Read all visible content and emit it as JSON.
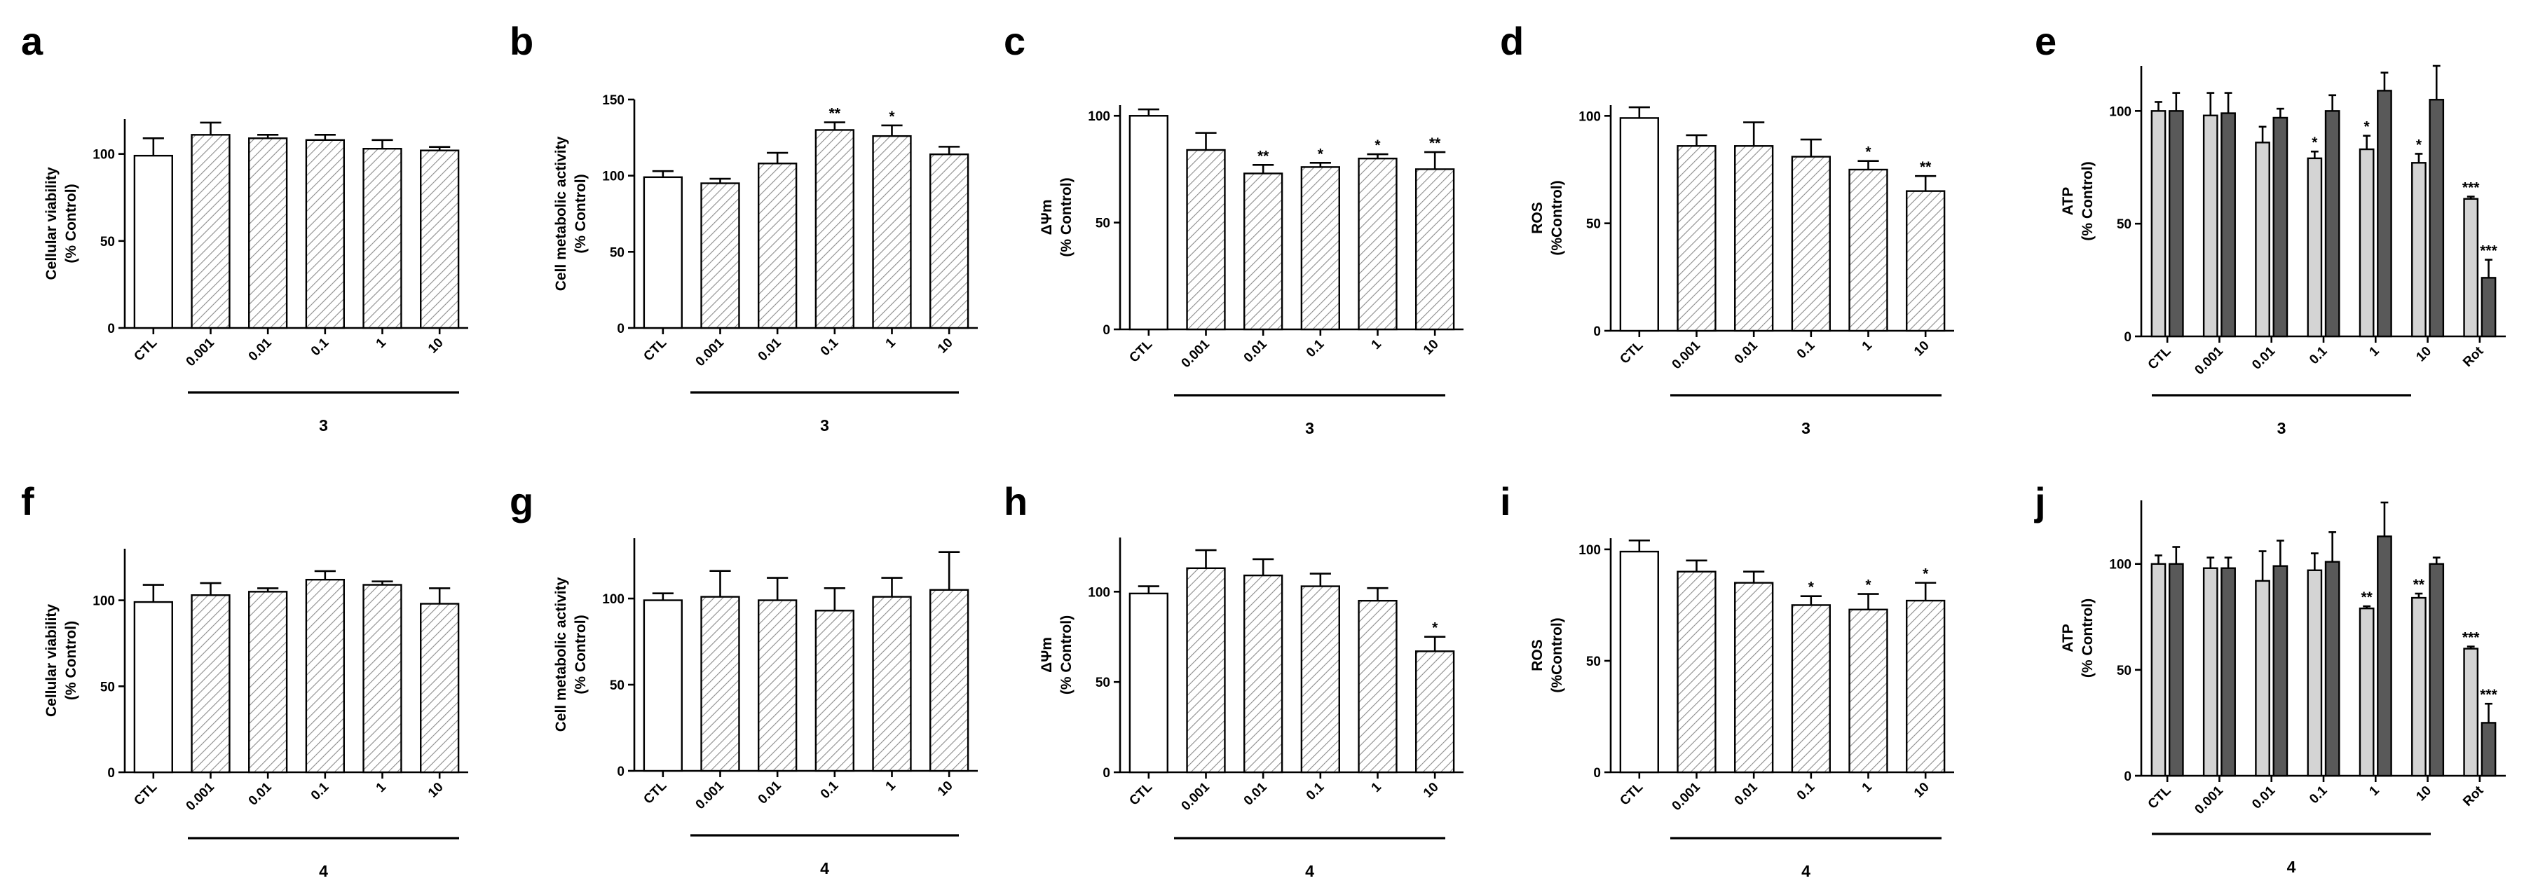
{
  "figure": {
    "description_free": true
  },
  "style": {
    "open_fill": "#ffffff",
    "hatch_color": "#8c8c8c",
    "light_fill": "#d4d4d4",
    "dark_fill": "#595959",
    "axis_color": "#000000"
  },
  "chart_data": [
    {
      "letter": "a",
      "type": "bar",
      "ylabel": [
        "Cellular viability",
        "(% Control)"
      ],
      "ylim": [
        0,
        120
      ],
      "yticks": [
        "0",
        "50",
        "100"
      ],
      "categories": [
        "CTL",
        "0.001",
        "0.01",
        "0.1",
        "1",
        "10"
      ],
      "group_label": "3",
      "series": [
        {
          "name": "main",
          "values": [
            99,
            111,
            109,
            108,
            103,
            102
          ],
          "errors": [
            10,
            7,
            2,
            3,
            5,
            2
          ]
        }
      ],
      "significance": [
        "",
        "",
        "",
        "",
        "",
        ""
      ]
    },
    {
      "letter": "b",
      "type": "bar",
      "ylabel": [
        "Cell metabolic activity",
        "(% Control)"
      ],
      "ylim": [
        0,
        150
      ],
      "yticks": [
        "0",
        "50",
        "100",
        "150"
      ],
      "categories": [
        "CTL",
        "0.001",
        "0.01",
        "0.1",
        "1",
        "10"
      ],
      "group_label": "3",
      "series": [
        {
          "name": "main",
          "values": [
            99,
            95,
            108,
            130,
            126,
            114
          ],
          "errors": [
            4,
            3,
            7,
            5,
            7,
            5
          ]
        }
      ],
      "significance": [
        "",
        "",
        "",
        "**",
        "*",
        ""
      ]
    },
    {
      "letter": "c",
      "type": "bar",
      "ylabel": [
        "ΔΨm",
        "(% Control)"
      ],
      "ylim": [
        0,
        105
      ],
      "yticks": [
        "0",
        "50",
        "100"
      ],
      "categories": [
        "CTL",
        "0.001",
        "0.01",
        "0.1",
        "1",
        "10"
      ],
      "group_label": "3",
      "series": [
        {
          "name": "main",
          "values": [
            100,
            84,
            73,
            76,
            80,
            75
          ],
          "errors": [
            3,
            8,
            4,
            2,
            2,
            8
          ]
        }
      ],
      "significance": [
        "",
        "",
        "**",
        "*",
        "*",
        "**"
      ]
    },
    {
      "letter": "d",
      "type": "bar",
      "ylabel": [
        "ROS",
        "(%Control)"
      ],
      "ylim": [
        0,
        105
      ],
      "yticks": [
        "0",
        "50",
        "100"
      ],
      "categories": [
        "CTL",
        "0.001",
        "0.01",
        "0.1",
        "1",
        "10"
      ],
      "group_label": "3",
      "series": [
        {
          "name": "main",
          "values": [
            99,
            86,
            86,
            81,
            75,
            65
          ],
          "errors": [
            5,
            5,
            11,
            8,
            4,
            7
          ]
        }
      ],
      "significance": [
        "",
        "",
        "",
        "",
        "*",
        "**"
      ]
    },
    {
      "letter": "e",
      "type": "grouped-bar",
      "ylabel": [
        "ATP",
        "(% Control)"
      ],
      "ylim": [
        0,
        120
      ],
      "yticks": [
        "0",
        "50",
        "100"
      ],
      "categories": [
        "CTL",
        "0.001",
        "0.01",
        "0.1",
        "1",
        "10",
        "Rot"
      ],
      "group_label": "3",
      "group_span": [
        0,
        5
      ],
      "series": [
        {
          "name": "light",
          "values": [
            100,
            98,
            86,
            79,
            83,
            77,
            61
          ],
          "errors": [
            4,
            10,
            7,
            3,
            6,
            4,
            1
          ]
        },
        {
          "name": "dark",
          "values": [
            100,
            99,
            97,
            100,
            109,
            105,
            26
          ],
          "errors": [
            8,
            9,
            4,
            7,
            8,
            15,
            8
          ]
        }
      ],
      "significance": [
        [
          "",
          ""
        ],
        [
          "",
          ""
        ],
        [
          "",
          ""
        ],
        [
          "*",
          ""
        ],
        [
          "*",
          ""
        ],
        [
          "*",
          ""
        ],
        [
          "***",
          "***"
        ]
      ]
    },
    {
      "letter": "f",
      "type": "bar",
      "ylabel": [
        "Cellular viability",
        "(% Control)"
      ],
      "ylim": [
        0,
        130
      ],
      "yticks": [
        "0",
        "50",
        "100"
      ],
      "categories": [
        "CTL",
        "0.001",
        "0.01",
        "0.1",
        "1",
        "10"
      ],
      "group_label": "4",
      "series": [
        {
          "name": "main",
          "values": [
            99,
            103,
            105,
            112,
            109,
            98
          ],
          "errors": [
            10,
            7,
            2,
            5,
            2,
            9
          ]
        }
      ],
      "significance": [
        "",
        "",
        "",
        "",
        "",
        ""
      ]
    },
    {
      "letter": "g",
      "type": "bar",
      "ylabel": [
        "Cell metabolic activity",
        "(% Control)"
      ],
      "ylim": [
        0,
        135
      ],
      "yticks": [
        "0",
        "50",
        "100"
      ],
      "categories": [
        "CTL",
        "0.001",
        "0.01",
        "0.1",
        "1",
        "10"
      ],
      "group_label": "4",
      "series": [
        {
          "name": "main",
          "values": [
            99,
            101,
            99,
            93,
            101,
            105
          ],
          "errors": [
            4,
            15,
            13,
            13,
            11,
            22
          ]
        }
      ],
      "significance": [
        "",
        "",
        "",
        "",
        "",
        ""
      ]
    },
    {
      "letter": "h",
      "type": "bar",
      "ylabel": [
        "ΔΨm",
        "(% Control)"
      ],
      "ylim": [
        0,
        130
      ],
      "yticks": [
        "0",
        "50",
        "100"
      ],
      "categories": [
        "CTL",
        "0.001",
        "0.01",
        "0.1",
        "1",
        "10"
      ],
      "group_label": "4",
      "series": [
        {
          "name": "main",
          "values": [
            99,
            113,
            109,
            103,
            95,
            67
          ],
          "errors": [
            4,
            10,
            9,
            7,
            7,
            8
          ]
        }
      ],
      "significance": [
        "",
        "",
        "",
        "",
        "",
        "*"
      ]
    },
    {
      "letter": "i",
      "type": "bar",
      "ylabel": [
        "ROS",
        "(%Control)"
      ],
      "ylim": [
        0,
        105
      ],
      "yticks": [
        "0",
        "50",
        "100"
      ],
      "categories": [
        "CTL",
        "0.001",
        "0.01",
        "0.1",
        "1",
        "10"
      ],
      "group_label": "4",
      "series": [
        {
          "name": "main",
          "values": [
            99,
            90,
            85,
            75,
            73,
            77
          ],
          "errors": [
            5,
            5,
            5,
            4,
            7,
            8
          ]
        }
      ],
      "significance": [
        "",
        "",
        "",
        "*",
        "*",
        "*"
      ]
    },
    {
      "letter": "j",
      "type": "grouped-bar",
      "ylabel": [
        "ATP",
        "(% Control)"
      ],
      "ylim": [
        0,
        130
      ],
      "yticks": [
        "0",
        "50",
        "100"
      ],
      "categories": [
        "CTL",
        "0.001",
        "0.01",
        "0.1",
        "1",
        "10",
        "Rot"
      ],
      "group_label": "4",
      "group_span": [
        0,
        5
      ],
      "series": [
        {
          "name": "light",
          "values": [
            100,
            98,
            92,
            97,
            79,
            84,
            60
          ],
          "errors": [
            4,
            5,
            14,
            8,
            1,
            2,
            1
          ]
        },
        {
          "name": "dark",
          "values": [
            100,
            98,
            99,
            101,
            113,
            100,
            25
          ],
          "errors": [
            8,
            5,
            12,
            14,
            16,
            3,
            9
          ]
        }
      ],
      "significance": [
        [
          "",
          ""
        ],
        [
          "",
          ""
        ],
        [
          "",
          ""
        ],
        [
          "",
          ""
        ],
        [
          "**",
          ""
        ],
        [
          "**",
          ""
        ],
        [
          "***",
          "***"
        ]
      ]
    }
  ]
}
